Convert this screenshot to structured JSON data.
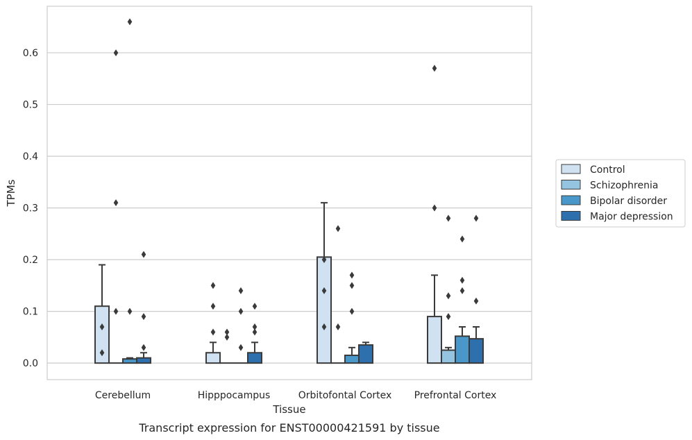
{
  "chart_data": {
    "type": "bar",
    "xlabel": "Tissue",
    "ylabel": "TPMs",
    "caption": "Transcript expression for ENST00000421591 by tissue",
    "ylim": [
      -0.032,
      0.69
    ],
    "yticks": [
      "0.0",
      "0.1",
      "0.2",
      "0.3",
      "0.4",
      "0.5",
      "0.6"
    ],
    "grid": "horizontal",
    "legend_position": "right",
    "categories": [
      "Cerebellum",
      "Hipppocampus",
      "Orbitofontal Cortex",
      "Prefrontal Cortex"
    ],
    "series": [
      {
        "name": "Control",
        "color": "#d0e1f2",
        "values": [
          0.11,
          0.02,
          0.205,
          0.09
        ],
        "error_upper": [
          0.19,
          0.04,
          0.31,
          0.17
        ],
        "outliers": [
          [
            0.07,
            0.02
          ],
          [
            0.15,
            0.11,
            0.06
          ],
          [
            0.2,
            0.14,
            0.07
          ],
          [
            0.3,
            0.57
          ]
        ]
      },
      {
        "name": "Schizophrenia",
        "color": "#94c4df",
        "values": [
          0.0,
          0.0,
          0.0,
          0.025
        ],
        "error_upper": [
          0.0,
          0.0,
          0.0,
          0.03
        ],
        "outliers": [
          [
            0.6,
            0.31,
            0.1
          ],
          [
            0.06,
            0.05
          ],
          [
            0.26,
            0.07
          ],
          [
            0.28,
            0.13,
            0.09
          ]
        ]
      },
      {
        "name": "Bipolar disorder",
        "color": "#4a98c9",
        "values": [
          0.008,
          0.0,
          0.015,
          0.052
        ],
        "error_upper": [
          0.01,
          0.0,
          0.03,
          0.07
        ],
        "outliers": [
          [
            0.66,
            0.1
          ],
          [
            0.14,
            0.1,
            0.03
          ],
          [
            0.17,
            0.15,
            0.1
          ],
          [
            0.24,
            0.16,
            0.14
          ]
        ]
      },
      {
        "name": "Major depression",
        "color": "#2e6fae",
        "values": [
          0.01,
          0.02,
          0.035,
          0.047
        ],
        "error_upper": [
          0.02,
          0.04,
          0.04,
          0.07
        ],
        "outliers": [
          [
            0.21,
            0.09,
            0.03
          ],
          [
            0.11,
            0.07,
            0.06
          ],
          [],
          [
            0.28,
            0.12
          ]
        ]
      }
    ]
  }
}
